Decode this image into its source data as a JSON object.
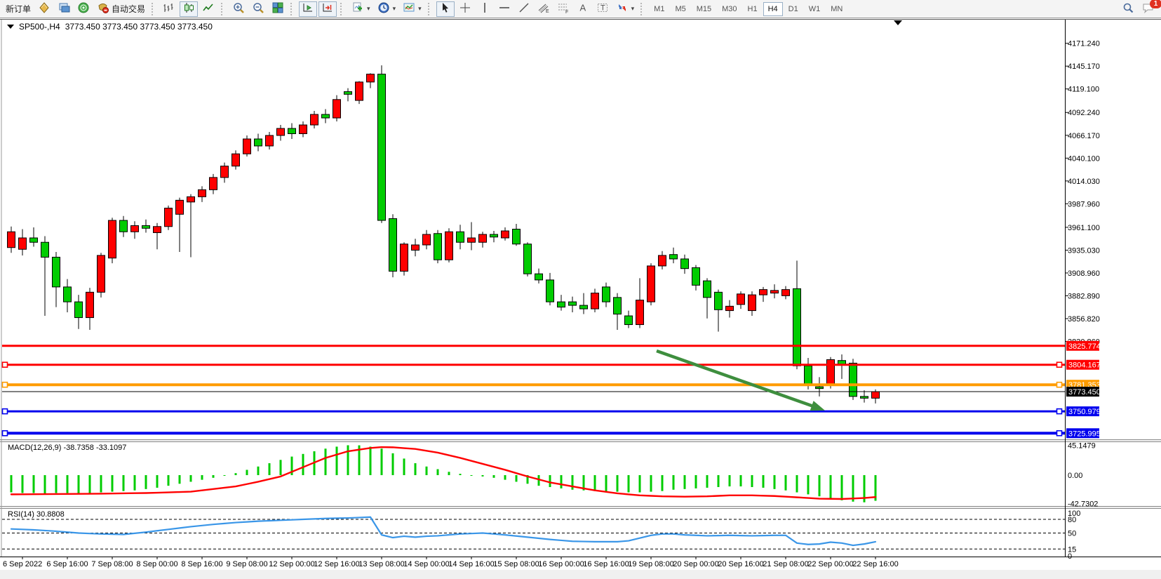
{
  "toolbar": {
    "new_order_label": "新订单",
    "autotrading_label": "自动交易",
    "timeframes": [
      "M1",
      "M5",
      "M15",
      "M30",
      "H1",
      "H4",
      "D1",
      "W1",
      "MN"
    ],
    "active_timeframe": "H4",
    "notification_count": "1",
    "icon_letters": {
      "channel": "E",
      "fibonacci": "F",
      "text": "A",
      "label": "T"
    }
  },
  "chart": {
    "title_symbol": "SP500-,H4",
    "title_quotes": "3773.450 3773.450 3773.450 3773.450",
    "shift_marker_bar": 79
  },
  "price_axis": {
    "ticks": [
      4171.24,
      4145.17,
      4119.1,
      4092.24,
      4066.17,
      4040.1,
      4014.03,
      3987.96,
      3961.1,
      3935.03,
      3908.96,
      3882.89,
      3856.82,
      3830.86
    ]
  },
  "time_axis": {
    "labels": [
      "6 Sep 2022",
      "6 Sep 16:00",
      "7 Sep 08:00",
      "8 Sep 00:00",
      "8 Sep 16:00",
      "9 Sep 08:00",
      "12 Sep 00:00",
      "12 Sep 16:00",
      "13 Sep 08:00",
      "14 Sep 00:00",
      "14 Sep 16:00",
      "15 Sep 08:00",
      "16 Sep 00:00",
      "16 Sep 16:00",
      "19 Sep 08:00",
      "20 Sep 00:00",
      "20 Sep 16:00",
      "21 Sep 08:00",
      "22 Sep 00:00",
      "22 Sep 16:00"
    ]
  },
  "lines": [
    {
      "label": "3825.774",
      "price": 3825.774,
      "color": "#FF0000",
      "width": 3,
      "handles": false
    },
    {
      "label": "3804.167",
      "price": 3804.167,
      "color": "#FF0000",
      "width": 3,
      "handles": true
    },
    {
      "label": "3781.353",
      "price": 3781.353,
      "color": "#FF9C00",
      "width": 4,
      "handles": true
    },
    {
      "label": "3773.450",
      "price": 3773.45,
      "color": "#000000",
      "width": 1,
      "handles": false
    },
    {
      "label": "3750.979",
      "price": 3750.979,
      "color": "#0000EE",
      "width": 3,
      "handles": true
    },
    {
      "label": "3725.995",
      "price": 3725.995,
      "color": "#0000EE",
      "width": 4,
      "handles": true
    }
  ],
  "indicators": {
    "macd": {
      "label": "MACD(12,26,9) -38.7358 -33.1097",
      "scale_labels": [
        "45.1479",
        "0.00",
        "-42.7302"
      ],
      "scale_values": [
        45.1479,
        0,
        -42.7302
      ]
    },
    "rsi": {
      "label": "RSI(14) 30.8808",
      "scale_labels": [
        "100",
        "80",
        "50",
        "15",
        "0"
      ],
      "scale_values": [
        100,
        80,
        50,
        15,
        0
      ],
      "levels": [
        80,
        50,
        15
      ]
    }
  },
  "annotations": {
    "trend_arrow": {
      "from_bar": 57.5,
      "from_price": 3820,
      "to_bar": 72.5,
      "to_price": 3752,
      "color": "#3E8E3E"
    }
  },
  "colors": {
    "bull": "#FF0000",
    "bear": "#00CC00",
    "wick": "#000000",
    "macd_hist": "#00CC00",
    "macd_signal": "#FF0000",
    "rsi_line": "#3A96E8",
    "label_text": "#FFFFFF",
    "axis_text": "#000000",
    "arrow": "#3E8E3E"
  },
  "chart_data": {
    "type": "candlestick",
    "title": "SP500- H4",
    "ylim": [
      3719,
      4187
    ],
    "price_ticks": [
      4171.24,
      4145.17,
      4119.1,
      4092.24,
      4066.17,
      4040.1,
      4014.03,
      3987.96,
      3961.1,
      3935.03,
      3908.96,
      3882.89,
      3856.82,
      3830.86
    ],
    "x_first_label_bar": 1,
    "x_bars_per_label": 4,
    "candles": [
      [
        3938,
        3962,
        3932,
        3956
      ],
      [
        3936,
        3959,
        3929,
        3949
      ],
      [
        3949,
        3961,
        3939,
        3944
      ],
      [
        3944,
        3951,
        3860,
        3927
      ],
      [
        3927,
        3933,
        3870,
        3893
      ],
      [
        3893,
        3902,
        3864,
        3876
      ],
      [
        3876,
        3884,
        3845,
        3858
      ],
      [
        3858,
        3892,
        3844,
        3887
      ],
      [
        3887,
        3932,
        3881,
        3929
      ],
      [
        3926,
        3972,
        3920,
        3969
      ],
      [
        3969,
        3974,
        3950,
        3956
      ],
      [
        3956,
        3968,
        3948,
        3963
      ],
      [
        3963,
        3970,
        3955,
        3960
      ],
      [
        3955,
        3966,
        3936,
        3962
      ],
      [
        3962,
        3986,
        3958,
        3983
      ],
      [
        3976,
        3995,
        3933,
        3992
      ],
      [
        3990,
        3999,
        3927,
        3996
      ],
      [
        3996,
        4008,
        3990,
        4004
      ],
      [
        4004,
        4022,
        3999,
        4018
      ],
      [
        4018,
        4035,
        4012,
        4031
      ],
      [
        4031,
        4049,
        4027,
        4045
      ],
      [
        4045,
        4066,
        4042,
        4062
      ],
      [
        4062,
        4068,
        4048,
        4054
      ],
      [
        4054,
        4070,
        4050,
        4066
      ],
      [
        4066,
        4078,
        4060,
        4074
      ],
      [
        4074,
        4080,
        4062,
        4068
      ],
      [
        4068,
        4082,
        4064,
        4078
      ],
      [
        4078,
        4094,
        4074,
        4090
      ],
      [
        4090,
        4096,
        4080,
        4086
      ],
      [
        4086,
        4112,
        4082,
        4107
      ],
      [
        4116,
        4120,
        4105,
        4113
      ],
      [
        4106,
        4128,
        4102,
        4127
      ],
      [
        4127,
        4137,
        4120,
        4136
      ],
      [
        4136,
        4146,
        3966,
        3969
      ],
      [
        3971,
        3976,
        3904,
        3911
      ],
      [
        3911,
        3944,
        3906,
        3942
      ],
      [
        3935,
        3948,
        3928,
        3941
      ],
      [
        3941,
        3958,
        3936,
        3953
      ],
      [
        3954,
        3958,
        3920,
        3924
      ],
      [
        3924,
        3960,
        3921,
        3956
      ],
      [
        3956,
        3964,
        3936,
        3944
      ],
      [
        3944,
        3967,
        3935,
        3949
      ],
      [
        3944,
        3956,
        3938,
        3953
      ],
      [
        3953,
        3957,
        3944,
        3950
      ],
      [
        3949,
        3961,
        3946,
        3957
      ],
      [
        3959,
        3965,
        3940,
        3942
      ],
      [
        3942,
        3944,
        3905,
        3908
      ],
      [
        3908,
        3914,
        3897,
        3901
      ],
      [
        3901,
        3909,
        3872,
        3876
      ],
      [
        3876,
        3884,
        3866,
        3870
      ],
      [
        3876,
        3882,
        3864,
        3872
      ],
      [
        3872,
        3886,
        3862,
        3868
      ],
      [
        3868,
        3891,
        3864,
        3886
      ],
      [
        3893,
        3898,
        3870,
        3876
      ],
      [
        3881,
        3886,
        3844,
        3862
      ],
      [
        3860,
        3866,
        3846,
        3850
      ],
      [
        3850,
        3903,
        3846,
        3878
      ],
      [
        3876,
        3920,
        3872,
        3917
      ],
      [
        3917,
        3934,
        3913,
        3929
      ],
      [
        3930,
        3938,
        3920,
        3925
      ],
      [
        3925,
        3930,
        3908,
        3914
      ],
      [
        3915,
        3918,
        3889,
        3895
      ],
      [
        3900,
        3903,
        3857,
        3881
      ],
      [
        3887,
        3890,
        3842,
        3867
      ],
      [
        3866,
        3878,
        3858,
        3871
      ],
      [
        3873,
        3888,
        3868,
        3885
      ],
      [
        3866,
        3888,
        3860,
        3884
      ],
      [
        3884,
        3893,
        3876,
        3890
      ],
      [
        3886,
        3896,
        3880,
        3889
      ],
      [
        3883,
        3894,
        3879,
        3890
      ],
      [
        3891,
        3923,
        3799,
        3803
      ],
      [
        3803,
        3812,
        3776,
        3781
      ],
      [
        3779,
        3790,
        3768,
        3777
      ],
      [
        3781,
        3813,
        3777,
        3810
      ],
      [
        3809,
        3816,
        3788,
        3804
      ],
      [
        3806,
        3811,
        3764,
        3768
      ],
      [
        3768,
        3775,
        3761,
        3766
      ],
      [
        3766,
        3776,
        3760,
        3773.45
      ]
    ],
    "macd": {
      "ylim": [
        -46.6,
        49.8
      ],
      "hist": [
        -26,
        -27,
        -27,
        -28,
        -27,
        -27,
        -28,
        -27,
        -26,
        -25,
        -24,
        -23,
        -21,
        -19,
        -16,
        -13,
        -10,
        -7,
        -4,
        -1,
        3,
        8,
        13,
        18,
        23,
        28,
        32,
        36,
        40,
        43,
        45.1,
        45,
        43,
        40,
        33,
        25,
        18,
        13,
        9,
        5,
        2,
        0,
        -2,
        -4,
        -7,
        -10,
        -13,
        -16,
        -18,
        -20,
        -22,
        -23,
        -24,
        -25,
        -25,
        -26,
        -26,
        -25,
        -24,
        -22,
        -21,
        -20,
        -19,
        -18,
        -17,
        -17,
        -18,
        -19,
        -21,
        -23,
        -26,
        -29,
        -32,
        -35,
        -38,
        -40,
        -41,
        -38.7
      ],
      "signal_points": [
        [
          0,
          -29
        ],
        [
          4,
          -28.5
        ],
        [
          8,
          -28
        ],
        [
          12,
          -27
        ],
        [
          16,
          -25
        ],
        [
          18,
          -21
        ],
        [
          20,
          -17
        ],
        [
          22,
          -10
        ],
        [
          24,
          -2
        ],
        [
          26,
          12
        ],
        [
          28,
          26
        ],
        [
          30,
          36
        ],
        [
          32,
          41
        ],
        [
          33,
          42.3
        ],
        [
          34,
          42
        ],
        [
          36,
          39.5
        ],
        [
          38,
          34
        ],
        [
          40,
          26
        ],
        [
          42,
          17
        ],
        [
          44,
          8
        ],
        [
          46,
          -2
        ],
        [
          48,
          -11
        ],
        [
          50,
          -17
        ],
        [
          52,
          -23
        ],
        [
          54,
          -27.5
        ],
        [
          56,
          -30.5
        ],
        [
          58,
          -32
        ],
        [
          60,
          -32.5
        ],
        [
          62,
          -32
        ],
        [
          64,
          -30.5
        ],
        [
          66,
          -30.5
        ],
        [
          68,
          -31.5
        ],
        [
          70,
          -33.5
        ],
        [
          72,
          -35.5
        ],
        [
          74,
          -36
        ],
        [
          76,
          -34.5
        ],
        [
          77,
          -33.1
        ]
      ]
    },
    "rsi": {
      "ylim": [
        -1.5,
        103.1
      ],
      "points": [
        [
          0,
          59
        ],
        [
          2,
          57
        ],
        [
          4,
          54
        ],
        [
          6,
          50
        ],
        [
          8,
          48
        ],
        [
          10,
          47
        ],
        [
          12,
          52
        ],
        [
          14,
          58
        ],
        [
          16,
          64
        ],
        [
          18,
          69
        ],
        [
          20,
          73
        ],
        [
          22,
          76
        ],
        [
          24,
          78
        ],
        [
          26,
          80
        ],
        [
          28,
          82
        ],
        [
          30,
          83
        ],
        [
          31,
          84
        ],
        [
          32,
          85
        ],
        [
          33,
          46
        ],
        [
          34,
          40
        ],
        [
          35,
          43
        ],
        [
          36,
          41
        ],
        [
          37,
          43
        ],
        [
          38,
          44
        ],
        [
          40,
          48
        ],
        [
          42,
          50
        ],
        [
          44,
          46
        ],
        [
          46,
          41
        ],
        [
          48,
          36
        ],
        [
          50,
          32
        ],
        [
          52,
          31
        ],
        [
          54,
          31
        ],
        [
          55,
          33
        ],
        [
          56,
          39
        ],
        [
          57,
          45
        ],
        [
          58,
          48
        ],
        [
          59,
          48
        ],
        [
          60,
          46
        ],
        [
          62,
          44
        ],
        [
          64,
          45
        ],
        [
          66,
          44
        ],
        [
          68,
          45
        ],
        [
          69,
          45
        ],
        [
          70,
          28
        ],
        [
          71,
          25
        ],
        [
          72,
          26
        ],
        [
          73,
          30
        ],
        [
          74,
          28
        ],
        [
          75,
          23
        ],
        [
          76,
          26
        ],
        [
          77,
          30.9
        ]
      ]
    }
  }
}
